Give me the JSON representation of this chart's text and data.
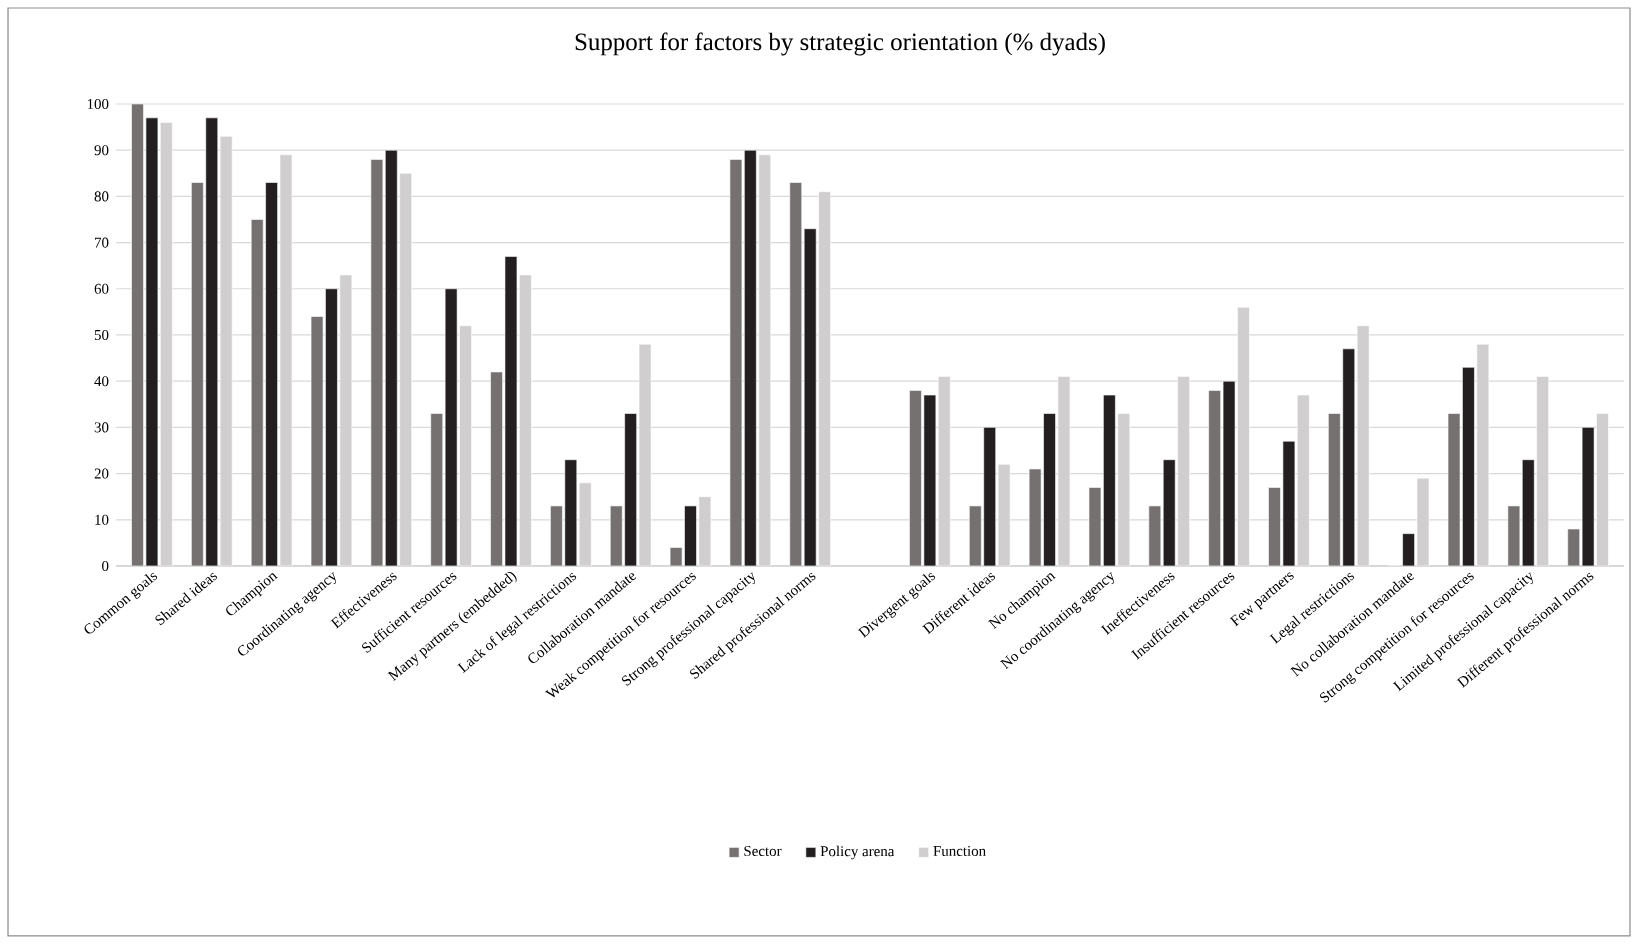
{
  "chart_data": {
    "type": "bar",
    "title": "Support for factors by strategic orientation (% dyads)",
    "categories": [
      "Common goals",
      "Shared ideas",
      "Champion",
      "Coordinating agency",
      "Effectiveness",
      "Sufficient resources",
      "Many partners (embedded)",
      "Lack of legal restrictions",
      "Collaboration mandate",
      "Weak competition for resources",
      "Strong professional capacity",
      "Shared professional norms",
      null,
      "Divergent goals",
      "Different ideas",
      "No champion",
      "No coordinating agency",
      "Ineffectiveness",
      "Insufficient resources",
      "Few partners",
      "Legal restrictions",
      "No collaboration mandate",
      "Strong competition for resources",
      "Limited professional capacity",
      "Different professional norms"
    ],
    "series": [
      {
        "name": "Sector",
        "color": "#767171",
        "values": [
          100,
          83,
          75,
          54,
          88,
          33,
          42,
          13,
          13,
          4,
          88,
          83,
          null,
          38,
          13,
          21,
          17,
          13,
          38,
          17,
          33,
          0,
          33,
          13,
          8
        ]
      },
      {
        "name": "Policy arena",
        "color": "#231f20",
        "values": [
          97,
          97,
          83,
          60,
          90,
          60,
          67,
          23,
          33,
          13,
          90,
          73,
          null,
          37,
          30,
          33,
          37,
          23,
          40,
          27,
          47,
          7,
          43,
          23,
          30
        ]
      },
      {
        "name": "Function",
        "color": "#d0cece",
        "values": [
          96,
          93,
          89,
          63,
          85,
          52,
          63,
          18,
          48,
          15,
          89,
          81,
          null,
          41,
          22,
          41,
          33,
          41,
          56,
          37,
          52,
          19,
          48,
          41,
          33
        ]
      }
    ],
    "ylim": [
      0,
      100
    ],
    "yticks": [
      0,
      10,
      20,
      30,
      40,
      50,
      60,
      70,
      80,
      90,
      100
    ],
    "grid": "y",
    "legend": "bottom"
  }
}
